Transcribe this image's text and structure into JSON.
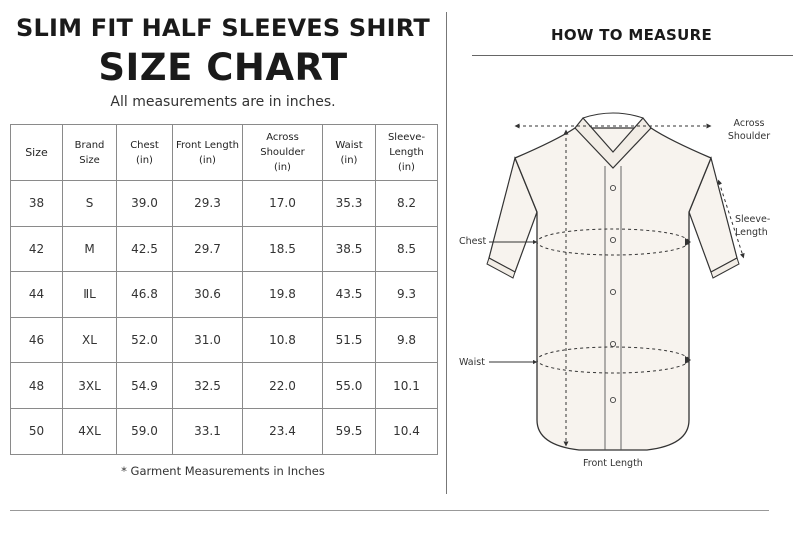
{
  "header": {
    "title_line1": "SLIM FIT HALF SLEEVES SHIRT",
    "title_line2": "SIZE CHART",
    "subtitle": "All measurements are in inches."
  },
  "table": {
    "headers": [
      {
        "line1": "Size",
        "line2": ""
      },
      {
        "line1": "Brand",
        "line2": "Size"
      },
      {
        "line1": "Chest",
        "line2": "(in)"
      },
      {
        "line1": "Front Length",
        "line2": "(in)"
      },
      {
        "line1": "Across Shoulder",
        "line2": "(in)"
      },
      {
        "line1": "Waist",
        "line2": "(in)"
      },
      {
        "line1": "Sleeve-Length",
        "line2": "(in)"
      }
    ],
    "rows": [
      [
        "38",
        "S",
        "39.0",
        "29.3",
        "17.0",
        "35.3",
        "8.2"
      ],
      [
        "42",
        "M",
        "42.5",
        "29.7",
        "18.5",
        "38.5",
        "8.5"
      ],
      [
        "44",
        "ⅡL",
        "46.8",
        "30.6",
        "19.8",
        "43.5",
        "9.3"
      ],
      [
        "46",
        "XL",
        "52.0",
        "31.0",
        "10.8",
        "51.5",
        "9.8"
      ],
      [
        "48",
        "3XL",
        "54.9",
        "32.5",
        "22.0",
        "55.0",
        "10.1"
      ],
      [
        "50",
        "4XL",
        "59.0",
        "33.1",
        "23.4",
        "59.5",
        "10.4"
      ]
    ]
  },
  "footnote": "* Garment Measurements in Inches",
  "how_to": {
    "title": "HOW TO MEASURE",
    "labels": {
      "across_line1": "Across",
      "across_line2": "Shoulder",
      "sleeve": "Sleeve-Length",
      "chest": "Chest",
      "waist": "Waist",
      "front_length": "Front Length"
    },
    "icons": [
      "shirt-illustration"
    ]
  },
  "colors": {
    "shirt_fill": "#f7f3ee",
    "outline": "#333333",
    "divider": "#777777"
  }
}
